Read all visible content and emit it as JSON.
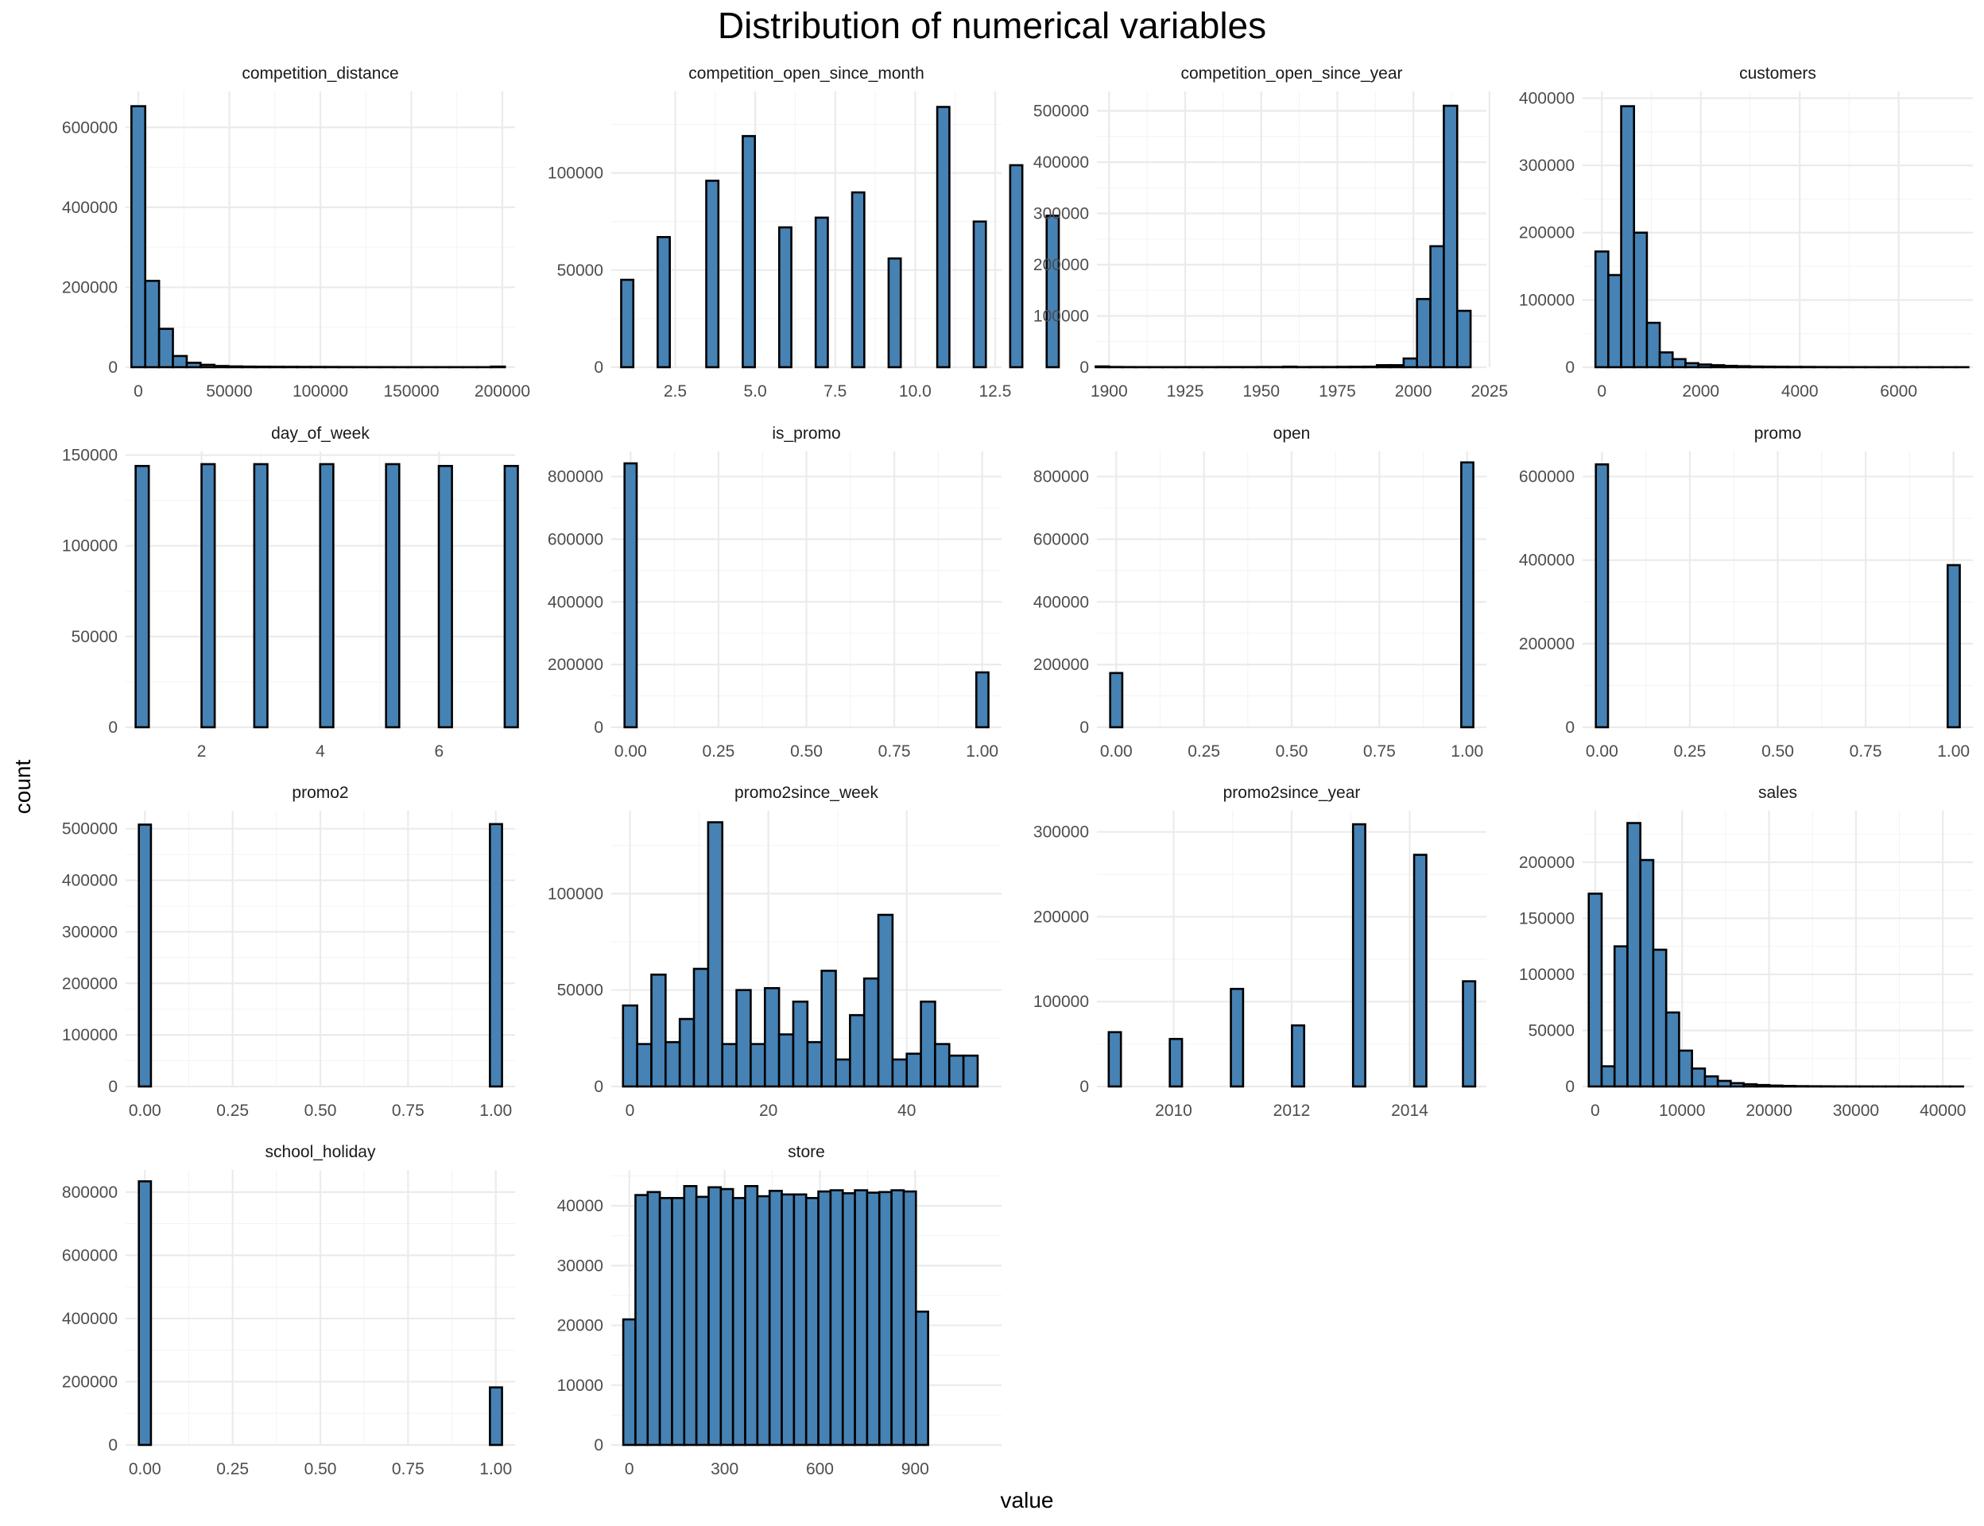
{
  "chart_data": {
    "type": "bar",
    "title": "Distribution of numerical variables",
    "xlabel": "value",
    "ylabel": "count",
    "grid": true,
    "legend": "none",
    "colors": {
      "fill": "#4682b4",
      "stroke": "#000000",
      "grid": "#ebebeb"
    },
    "panels": [
      {
        "name": "competition_distance",
        "xlim": [
          -7000,
          207000
        ],
        "ylim": [
          0,
          690000
        ],
        "xticks": [
          0,
          50000,
          100000,
          150000,
          200000
        ],
        "xtick_labels": [
          "0",
          "50000",
          "100000",
          "150000",
          "200000"
        ],
        "yticks": [
          0,
          200000,
          400000,
          600000
        ],
        "ytick_labels": [
          "0",
          "200000",
          "400000",
          "600000"
        ],
        "bar_edges": [
          -3800,
          3800
        ],
        "bin_width": 7600,
        "values": [
          653000,
          216000,
          96000,
          28000,
          11000,
          6000,
          3000,
          2000,
          1500,
          1200,
          1000,
          900,
          800,
          700,
          600,
          500,
          400,
          300,
          300,
          200,
          200,
          200,
          200,
          200,
          200,
          200,
          1500
        ]
      },
      {
        "name": "competition_open_since_month",
        "xlim": [
          0.5,
          12.7
        ],
        "ylim": [
          0,
          142000
        ],
        "xticks": [
          2.5,
          5.0,
          7.5,
          10.0,
          12.5
        ],
        "xtick_labels": [
          "2.5",
          "5.0",
          "7.5",
          "10.0",
          "12.5"
        ],
        "yticks": [
          0,
          50000,
          100000
        ],
        "ytick_labels": [
          "0",
          "50000",
          "100000"
        ],
        "bar_edges": [
          0.81,
          1.19
        ],
        "bin_width": 0.38,
        "values": [
          45000,
          0,
          0,
          67000,
          0,
          0,
          0,
          96000,
          0,
          0,
          119000,
          0,
          0,
          72000,
          0,
          0,
          77000,
          0,
          0,
          90000,
          0,
          0,
          56000,
          0,
          0,
          0,
          134000,
          0,
          0,
          75000,
          0,
          0,
          104000,
          0,
          0,
          78000
        ]
      },
      {
        "name": "competition_open_since_year",
        "xlim": [
          1896,
          2024
        ],
        "ylim": [
          0,
          538000
        ],
        "xticks": [
          1900,
          1925,
          1950,
          1975,
          2000,
          2025
        ],
        "xtick_labels": [
          "1900",
          "1925",
          "1950",
          "1975",
          "2000",
          "2025"
        ],
        "yticks": [
          0,
          100000,
          200000,
          300000,
          400000,
          500000
        ],
        "ytick_labels": [
          "0",
          "100000",
          "200000",
          "300000",
          "400000",
          "500000"
        ],
        "bar_edges": [
          1895.6,
          1904.4
        ],
        "bin_width": 4.4,
        "values": [
          1500,
          500,
          300,
          200,
          200,
          200,
          200,
          200,
          200,
          300,
          300,
          300,
          400,
          400,
          1000,
          400,
          500,
          500,
          700,
          800,
          1000,
          4000,
          4000,
          17000,
          133000,
          236000,
          510000,
          110000
        ]
      },
      {
        "name": "customers",
        "xlim": [
          -390,
          7500
        ],
        "ylim": [
          0,
          410000
        ],
        "xticks": [
          0,
          2000,
          4000,
          6000
        ],
        "xtick_labels": [
          "0",
          "2000",
          "4000",
          "6000"
        ],
        "yticks": [
          0,
          100000,
          200000,
          300000,
          400000
        ],
        "ytick_labels": [
          "0",
          "100000",
          "200000",
          "300000",
          "400000"
        ],
        "bar_edges": [
          -130,
          130
        ],
        "bin_width": 260,
        "values": [
          172000,
          137000,
          388000,
          200000,
          66000,
          22000,
          12000,
          6000,
          4000,
          3000,
          2000,
          1500,
          1000,
          800,
          600,
          500,
          400,
          300,
          250,
          200,
          150,
          120,
          100,
          80,
          60,
          50,
          50,
          50,
          50
        ]
      },
      {
        "name": "day_of_week",
        "xlim": [
          0.72,
          7.28
        ],
        "ylim": [
          0,
          152000
        ],
        "xticks": [
          2,
          4,
          6
        ],
        "xtick_labels": [
          "2",
          "4",
          "6"
        ],
        "yticks": [
          0,
          50000,
          100000,
          150000
        ],
        "ytick_labels": [
          "0",
          "50000",
          "100000",
          "150000"
        ],
        "bar_edges": [
          0.889,
          1.111
        ],
        "bin_width": 0.222,
        "values": [
          144000,
          0,
          0,
          0,
          0,
          145000,
          0,
          0,
          0,
          145000,
          0,
          0,
          0,
          0,
          145000,
          0,
          0,
          0,
          0,
          145000,
          0,
          0,
          0,
          144000,
          0,
          0,
          0,
          0,
          144000
        ]
      },
      {
        "name": "is_promo",
        "xlim": [
          -0.055,
          1.055
        ],
        "ylim": [
          0,
          880000
        ],
        "xticks": [
          0.0,
          0.25,
          0.5,
          0.75,
          1.0
        ],
        "xtick_labels": [
          "0.00",
          "0.25",
          "0.50",
          "0.75",
          "1.00"
        ],
        "yticks": [
          0,
          200000,
          400000,
          600000,
          800000
        ],
        "ytick_labels": [
          "0",
          "200000",
          "400000",
          "600000",
          "800000"
        ],
        "bar_edges": [
          -0.0172,
          0.0172
        ],
        "bin_width": 0.0345,
        "values": [
          842000,
          0,
          0,
          0,
          0,
          0,
          0,
          0,
          0,
          0,
          0,
          0,
          0,
          0,
          0,
          0,
          0,
          0,
          0,
          0,
          0,
          0,
          0,
          0,
          0,
          0,
          0,
          0,
          0,
          175000
        ]
      },
      {
        "name": "open",
        "xlim": [
          -0.055,
          1.055
        ],
        "ylim": [
          0,
          880000
        ],
        "xticks": [
          0.0,
          0.25,
          0.5,
          0.75,
          1.0
        ],
        "xtick_labels": [
          "0.00",
          "0.25",
          "0.50",
          "0.75",
          "1.00"
        ],
        "yticks": [
          0,
          200000,
          400000,
          600000,
          800000
        ],
        "ytick_labels": [
          "0",
          "200000",
          "400000",
          "600000",
          "800000"
        ],
        "bar_edges": [
          -0.0172,
          0.0172
        ],
        "bin_width": 0.0345,
        "values": [
          173000,
          0,
          0,
          0,
          0,
          0,
          0,
          0,
          0,
          0,
          0,
          0,
          0,
          0,
          0,
          0,
          0,
          0,
          0,
          0,
          0,
          0,
          0,
          0,
          0,
          0,
          0,
          0,
          0,
          845000
        ]
      },
      {
        "name": "promo",
        "xlim": [
          -0.055,
          1.055
        ],
        "ylim": [
          0,
          660000
        ],
        "xticks": [
          0.0,
          0.25,
          0.5,
          0.75,
          1.0
        ],
        "xtick_labels": [
          "0.00",
          "0.25",
          "0.50",
          "0.75",
          "1.00"
        ],
        "yticks": [
          0,
          200000,
          400000,
          600000
        ],
        "ytick_labels": [
          "0",
          "200000",
          "400000",
          "600000"
        ],
        "bar_edges": [
          -0.0172,
          0.0172
        ],
        "bin_width": 0.0345,
        "values": [
          629000,
          0,
          0,
          0,
          0,
          0,
          0,
          0,
          0,
          0,
          0,
          0,
          0,
          0,
          0,
          0,
          0,
          0,
          0,
          0,
          0,
          0,
          0,
          0,
          0,
          0,
          0,
          0,
          0,
          388000
        ]
      },
      {
        "name": "promo2",
        "xlim": [
          -0.055,
          1.055
        ],
        "ylim": [
          0,
          535000
        ],
        "xticks": [
          0.0,
          0.25,
          0.5,
          0.75,
          1.0
        ],
        "xtick_labels": [
          "0.00",
          "0.25",
          "0.50",
          "0.75",
          "1.00"
        ],
        "yticks": [
          0,
          100000,
          200000,
          300000,
          400000,
          500000
        ],
        "ytick_labels": [
          "0",
          "100000",
          "200000",
          "300000",
          "400000",
          "500000"
        ],
        "bar_edges": [
          -0.0172,
          0.0172
        ],
        "bin_width": 0.0345,
        "values": [
          508000,
          0,
          0,
          0,
          0,
          0,
          0,
          0,
          0,
          0,
          0,
          0,
          0,
          0,
          0,
          0,
          0,
          0,
          0,
          0,
          0,
          0,
          0,
          0,
          0,
          0,
          0,
          0,
          0,
          509000
        ]
      },
      {
        "name": "promo2since_week",
        "xlim": [
          -2.7,
          53.7
        ],
        "ylim": [
          0,
          143000
        ],
        "xticks": [
          0,
          20,
          40
        ],
        "xtick_labels": [
          "0",
          "20",
          "40"
        ],
        "yticks": [
          0,
          50000,
          100000
        ],
        "ytick_labels": [
          "0",
          "50000",
          "100000"
        ],
        "bar_edges": [
          -1,
          1
        ],
        "bin_width": 2.05,
        "values": [
          42000,
          22000,
          58000,
          23000,
          35000,
          61000,
          137000,
          22000,
          50000,
          22000,
          51000,
          27000,
          44000,
          23000,
          60000,
          14000,
          37000,
          56000,
          89000,
          14000,
          17000,
          44000,
          22000,
          16000,
          16000
        ]
      },
      {
        "name": "promo2since_year",
        "xlim": [
          2008.7,
          2015.3
        ],
        "ylim": [
          0,
          325000
        ],
        "xticks": [
          2010,
          2012,
          2014
        ],
        "xtick_labels": [
          "2010",
          "2012",
          "2014"
        ],
        "yticks": [
          0,
          100000,
          200000,
          300000
        ],
        "ytick_labels": [
          "0",
          "100000",
          "200000",
          "300000"
        ],
        "bar_edges": [
          2008.9,
          2009.1
        ],
        "bin_width": 0.207,
        "values": [
          64000,
          0,
          0,
          0,
          0,
          56000,
          0,
          0,
          0,
          0,
          115000,
          0,
          0,
          0,
          0,
          72000,
          0,
          0,
          0,
          0,
          309000,
          0,
          0,
          0,
          0,
          273000,
          0,
          0,
          0,
          124000
        ]
      },
      {
        "name": "sales",
        "xlim": [
          -1450,
          43450
        ],
        "ylim": [
          0,
          246000
        ],
        "xticks": [
          0,
          10000,
          20000,
          30000,
          40000
        ],
        "xtick_labels": [
          "0",
          "10000",
          "20000",
          "30000",
          "40000"
        ],
        "yticks": [
          0,
          50000,
          100000,
          150000,
          200000
        ],
        "ytick_labels": [
          "0",
          "50000",
          "100000",
          "150000",
          "200000"
        ],
        "bar_edges": [
          -742,
          742
        ],
        "bin_width": 1485,
        "values": [
          172000,
          18000,
          125000,
          235000,
          202000,
          122000,
          66000,
          32000,
          16000,
          9000,
          5000,
          3000,
          2000,
          1300,
          800,
          500,
          300,
          200,
          150,
          100,
          80,
          60,
          50,
          50,
          40,
          40,
          30,
          30,
          30
        ]
      },
      {
        "name": "school_holiday",
        "xlim": [
          -0.055,
          1.055
        ],
        "ylim": [
          0,
          870000
        ],
        "xticks": [
          0.0,
          0.25,
          0.5,
          0.75,
          1.0
        ],
        "xtick_labels": [
          "0.00",
          "0.25",
          "0.50",
          "0.75",
          "1.00"
        ],
        "yticks": [
          0,
          200000,
          400000,
          600000,
          800000
        ],
        "ytick_labels": [
          "0",
          "200000",
          "400000",
          "600000",
          "800000"
        ],
        "bar_edges": [
          -0.0172,
          0.0172
        ],
        "bin_width": 0.0345,
        "values": [
          834000,
          0,
          0,
          0,
          0,
          0,
          0,
          0,
          0,
          0,
          0,
          0,
          0,
          0,
          0,
          0,
          0,
          0,
          0,
          0,
          0,
          0,
          0,
          0,
          0,
          0,
          0,
          0,
          0,
          182000
        ]
      },
      {
        "name": "store",
        "xlim": [
          -57,
          1172
        ],
        "ylim": [
          0,
          46000
        ],
        "xticks": [
          0,
          300,
          600,
          900
        ],
        "xtick_labels": [
          "0",
          "300",
          "600",
          "900"
        ],
        "yticks": [
          0,
          10000,
          20000,
          30000,
          40000
        ],
        "ytick_labels": [
          "0",
          "10000",
          "20000",
          "30000",
          "40000"
        ],
        "bar_edges": [
          -19.2,
          19.2
        ],
        "bin_width": 38.4,
        "values": [
          21000,
          41800,
          42300,
          41300,
          41300,
          43300,
          41500,
          43100,
          42800,
          41300,
          43300,
          41600,
          42500,
          41900,
          41900,
          41300,
          42400,
          42600,
          42100,
          42600,
          42200,
          42300,
          42600,
          42400,
          22300
        ]
      }
    ]
  }
}
